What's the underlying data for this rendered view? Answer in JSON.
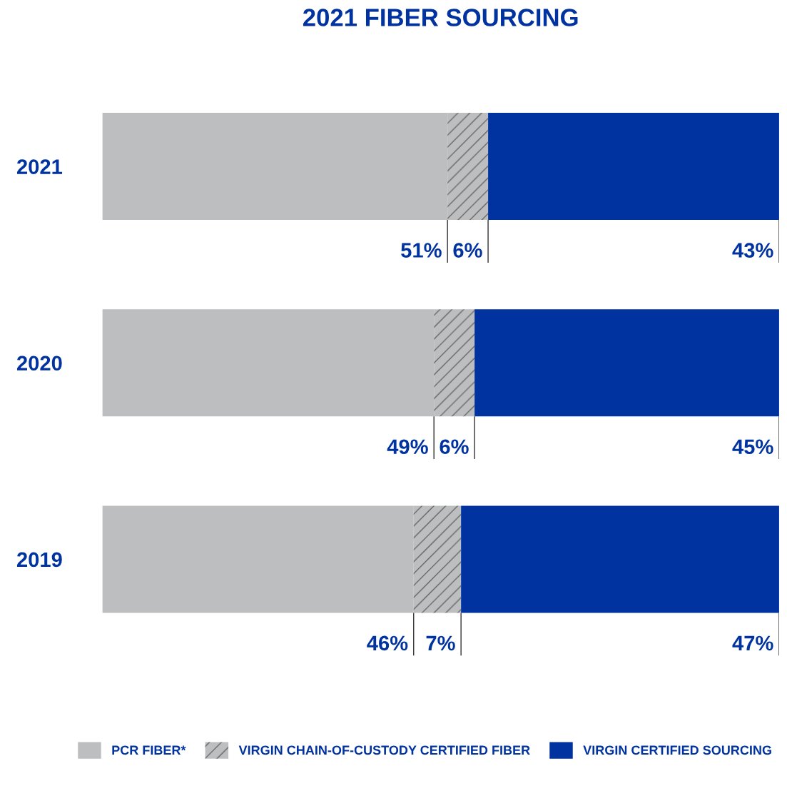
{
  "chart_data": {
    "type": "bar",
    "orientation": "horizontal",
    "stacked": true,
    "title": "2021 FIBER SOURCING",
    "categories": [
      "2021",
      "2020",
      "2019"
    ],
    "series": [
      {
        "name": "PCR FIBER*",
        "color": "#bdbec0",
        "values": [
          51,
          49,
          46
        ],
        "value_labels": [
          "51%",
          "49%",
          "46%"
        ]
      },
      {
        "name": "VIRGIN CHAIN-OF-CUSTODY CERTIFIED FIBER",
        "color": "#bdbec0",
        "values": [
          6,
          6,
          7
        ],
        "value_labels": [
          "6%",
          "6%",
          "7%"
        ]
      },
      {
        "name": "VIRGIN CERTIFIED SOURCING",
        "color": "#0033a0",
        "values": [
          43,
          45,
          47
        ],
        "value_labels": [
          "43%",
          "45%",
          "47%"
        ]
      }
    ],
    "xlim": [
      0,
      100
    ],
    "tick_labels": "y",
    "grid": false,
    "legend": "bottom"
  }
}
